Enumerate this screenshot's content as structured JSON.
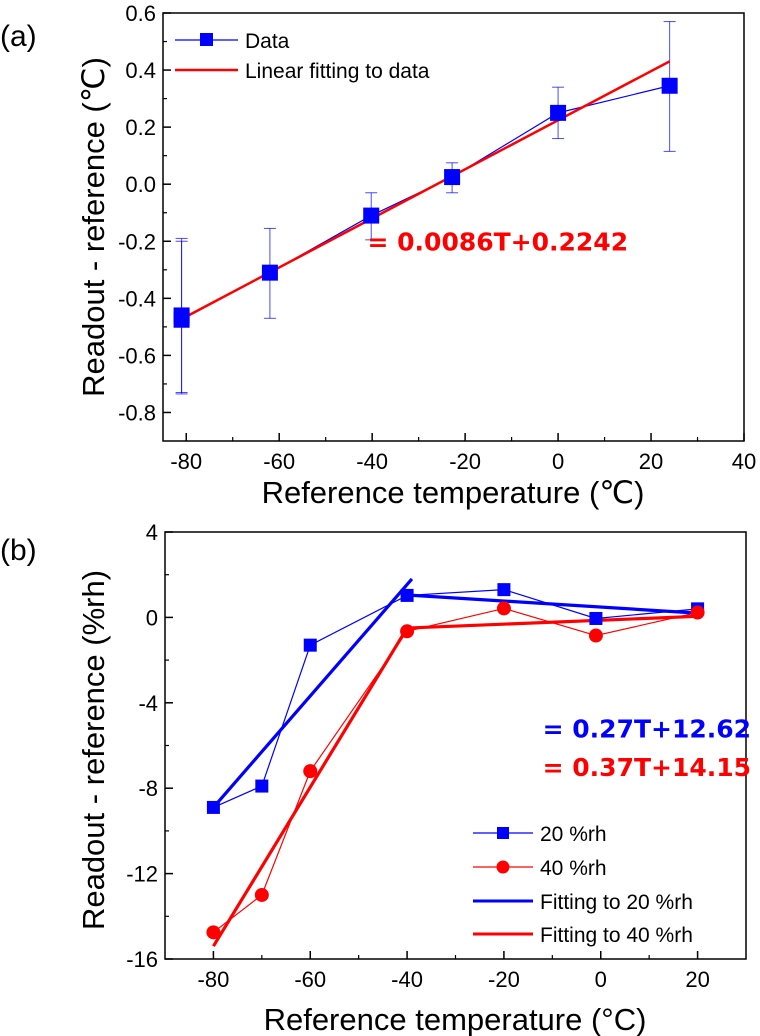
{
  "chart_data": [
    {
      "panel_label": "(a)",
      "type": "line",
      "title": "",
      "xlabel": "Reference temperature (℃)",
      "ylabel": "Readout - reference  (℃)",
      "xlim": [
        -85,
        40
      ],
      "ylim": [
        -0.9,
        0.6
      ],
      "xticks": [
        -80,
        -60,
        -40,
        -20,
        0,
        20,
        40
      ],
      "xtick_labels": [
        "-80",
        "-60",
        "-40",
        "-20",
        "0",
        "20",
        "40"
      ],
      "xminor": [
        -70,
        -50,
        -30,
        -10,
        10,
        30
      ],
      "yticks": [
        0.6,
        0.4,
        0.2,
        0.0,
        -0.2,
        -0.4,
        -0.6,
        -0.8
      ],
      "ytick_labels": [
        "0.6",
        "0.4",
        "0.2",
        "0.0",
        "-0.2",
        "-0.4",
        "-0.6",
        "-0.8"
      ],
      "yminor": [
        0.5,
        0.3,
        0.1,
        -0.1,
        -0.3,
        -0.5,
        -0.7
      ],
      "grid": false,
      "legend_position": "top-left",
      "series": [
        {
          "name": "Data",
          "kind": "line-marker",
          "marker": "square",
          "color": "#0000ff",
          "x": [
            -81,
            -81,
            -62,
            -40.2,
            -22.8,
            0,
            24
          ],
          "y": [
            -0.46,
            -0.475,
            -0.31,
            -0.11,
            0.025,
            0.25,
            0.345
          ],
          "err_low": [
            -0.73,
            -0.735,
            -0.47,
            -0.195,
            -0.03,
            0.16,
            0.115
          ],
          "err_high": [
            -0.19,
            -0.2,
            -0.155,
            -0.03,
            0.075,
            0.34,
            0.57
          ]
        },
        {
          "name": "Linear fitting to data",
          "kind": "fit-line",
          "color": "#ff0000",
          "slope": 0.0086,
          "intercept": 0.2242,
          "x_range": [
            -81,
            24
          ]
        }
      ],
      "annotations": [
        {
          "text": "= 0.0086T+0.2242",
          "color": "#ff0000",
          "x": -41,
          "y": -0.2
        }
      ]
    },
    {
      "panel_label": "(b)",
      "type": "line",
      "title": "",
      "xlabel": "Reference temperature (°C)",
      "ylabel": "Readout - reference  (%rh)",
      "xlim": [
        -90,
        30
      ],
      "ylim": [
        -16,
        4
      ],
      "xticks": [
        -80,
        -60,
        -40,
        -20,
        0,
        20
      ],
      "xtick_labels": [
        "-80",
        "-60",
        "-40",
        "-20",
        "0",
        "20"
      ],
      "xminor": [
        -70,
        -50,
        -30,
        -10,
        10
      ],
      "yticks": [
        4,
        0,
        -4,
        -8,
        -12,
        -16
      ],
      "ytick_labels": [
        "4",
        "0",
        "-4",
        "-8",
        "-12",
        "-16"
      ],
      "yminor": [
        2,
        -2,
        -6,
        -10,
        -14
      ],
      "grid": false,
      "legend_position": "bottom-right",
      "series": [
        {
          "name": "20 %rh",
          "kind": "line-marker",
          "marker": "square",
          "color": "#0000ff",
          "x": [
            -80,
            -70,
            -60,
            -40,
            -20,
            -1,
            20
          ],
          "y": [
            -8.9,
            -7.9,
            -1.3,
            1.03,
            1.3,
            -0.05,
            0.4
          ]
        },
        {
          "name": "40 %rh",
          "kind": "line-marker",
          "marker": "circle",
          "color": "#ff0000",
          "x": [
            -80,
            -70,
            -60,
            -40,
            -20,
            -1,
            20
          ],
          "y": [
            -14.75,
            -13.0,
            -7.2,
            -0.65,
            0.42,
            -0.85,
            0.23
          ]
        },
        {
          "name": "Fitting to 20 %rh",
          "kind": "fit-segments",
          "color": "#0000ff",
          "segments": [
            [
              [
                -80,
                -8.9
              ],
              [
                -39,
                1.8
              ]
            ],
            [
              [
                -40,
                1.05
              ],
              [
                20,
                0.2
              ]
            ]
          ]
        },
        {
          "name": "Fitting to 40 %rh",
          "kind": "fit-segments",
          "color": "#ff0000",
          "segments": [
            [
              [
                -80,
                -15.4
              ],
              [
                -40,
                -0.5
              ]
            ],
            [
              [
                -40,
                -0.5
              ],
              [
                20,
                0.05
              ]
            ]
          ]
        }
      ],
      "annotations": [
        {
          "text": "= 0.27T+12.62",
          "color": "#0000ff",
          "x": -12,
          "y": -5.2
        },
        {
          "text": "= 0.37T+14.15",
          "color": "#ff0000",
          "x": -12,
          "y": -7.0
        }
      ]
    }
  ]
}
